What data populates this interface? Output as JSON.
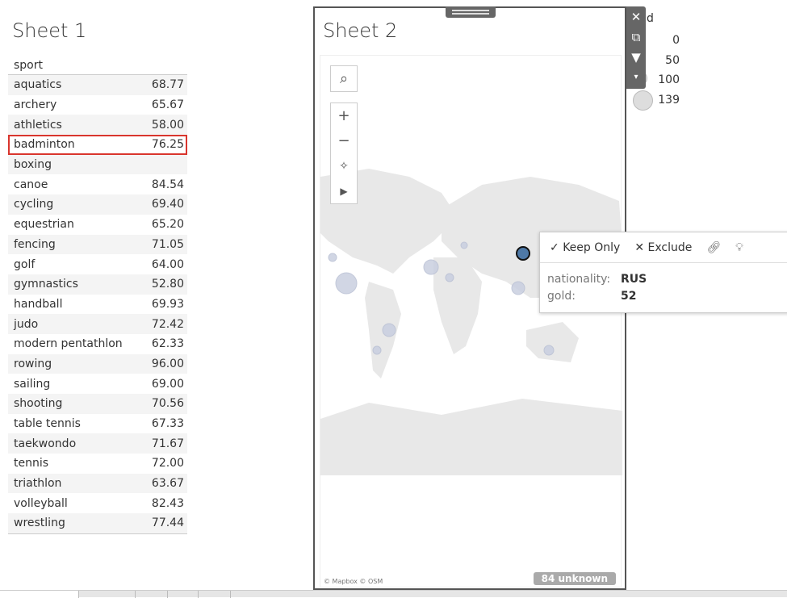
{
  "sheet1": {
    "title": "Sheet 1",
    "column_header": "sport",
    "selected_row": "badminton",
    "rows": [
      [
        "aquatics",
        "68.77"
      ],
      [
        "archery",
        "65.67"
      ],
      [
        "athletics",
        "58.00"
      ],
      [
        "badminton",
        "76.25"
      ],
      [
        "boxing",
        ""
      ],
      [
        "canoe",
        "84.54"
      ],
      [
        "cycling",
        "69.40"
      ],
      [
        "equestrian",
        "65.20"
      ],
      [
        "fencing",
        "71.05"
      ],
      [
        "golf",
        "64.00"
      ],
      [
        "gymnastics",
        "52.80"
      ],
      [
        "handball",
        "69.93"
      ],
      [
        "judo",
        "72.42"
      ],
      [
        "modern pentathlon",
        "62.33"
      ],
      [
        "rowing",
        "96.00"
      ],
      [
        "sailing",
        "69.00"
      ],
      [
        "shooting",
        "70.56"
      ],
      [
        "table tennis",
        "67.33"
      ],
      [
        "taekwondo",
        "71.67"
      ],
      [
        "tennis",
        "72.00"
      ],
      [
        "triathlon",
        "63.67"
      ],
      [
        "volleyball",
        "82.43"
      ],
      [
        "wrestling",
        "77.44"
      ]
    ]
  },
  "sheet2": {
    "title": "Sheet 2",
    "credit": "© Mapbox © OSM",
    "unknown": "84 unknown",
    "map_tools": [
      "search-icon",
      "zoom-in-icon",
      "zoom-out-icon",
      "pin-icon",
      "play-icon"
    ],
    "selected_mark_color": "#4e79a7"
  },
  "sidebar_icons": [
    "close-icon",
    "popout-icon",
    "filter-icon",
    "dropdown-icon"
  ],
  "legend": {
    "title": "d",
    "values": [
      "0",
      "50",
      "100",
      "139"
    ]
  },
  "tooltip": {
    "keep_only": "Keep Only",
    "exclude": "Exclude",
    "fields": [
      {
        "label": "nationality:",
        "value": "RUS"
      },
      {
        "label": "gold:",
        "value": "52"
      }
    ]
  }
}
